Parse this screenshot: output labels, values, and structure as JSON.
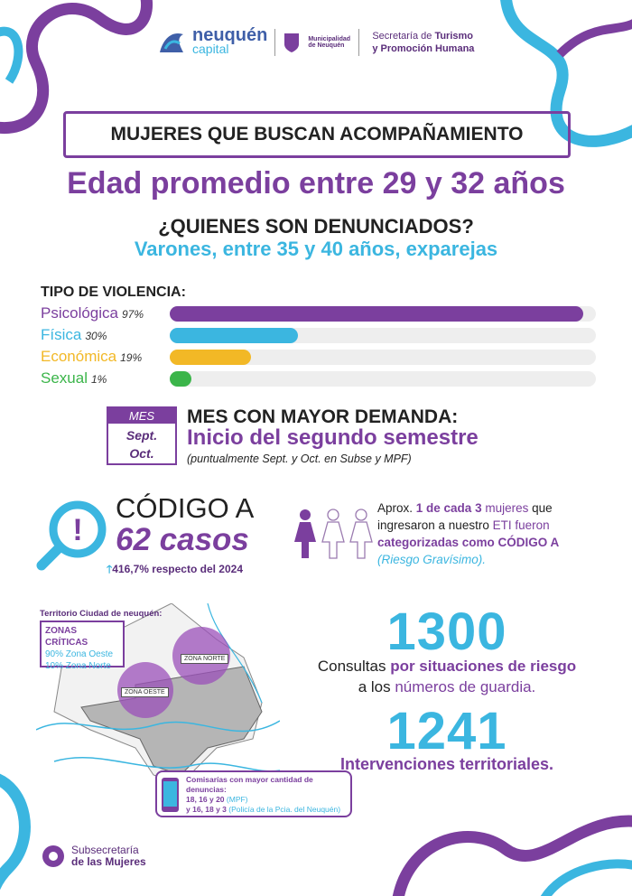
{
  "header": {
    "logo_main": "neuquén",
    "logo_sub": "capital",
    "municipalidad": "Municipalidad de Neuquén",
    "secretaria_line1_a": "Secretaría de ",
    "secretaria_line1_b": "Turismo",
    "secretaria_line2": "y Promoción Humana"
  },
  "title": "MUJERES QUE BUSCAN ACOMPAÑAMIENTO",
  "age": "Edad promedio entre 29 y 32 años",
  "denounced_q": "¿QUIENES SON DENUNCIADOS?",
  "denounced_a": "Varones, entre 35 y 40 años, exparejas",
  "chart_data": {
    "type": "bar",
    "title": "TIPO DE VIOLENCIA:",
    "categories": [
      "Psicológica",
      "Física",
      "Económica",
      "Sexual"
    ],
    "values": [
      97,
      30,
      19,
      1
    ],
    "value_labels": [
      "97%",
      "30%",
      "19%",
      "1%"
    ],
    "colors": [
      "#7b3f9e",
      "#3bb6e0",
      "#f2b826",
      "#3bb54a"
    ],
    "ylim": [
      0,
      100
    ]
  },
  "month": {
    "cal_header": "MES",
    "cal_line1": "Sept.",
    "cal_line2": "Oct.",
    "heading": "MES CON MAYOR DEMANDA:",
    "main": "Inicio del segundo semestre",
    "note": "(puntualmente Sept. y Oct. en Subse y MPF)"
  },
  "codigo": {
    "label": "CÓDIGO A",
    "cases": "62 casos",
    "increase": "416,7% respecto del 2024",
    "text_a": "Aprox. ",
    "text_b": "1 de cada 3",
    "text_c": " mujeres",
    "text_d": " que ingresaron a nuestro ",
    "text_e": "ETI fueron",
    "text_f": "categorizadas como CÓDIGO A",
    "text_g": "(Riesgo Gravísimo)."
  },
  "map": {
    "title": "Territorio Ciudad de neuquén:",
    "box_title": "ZONAS CRÍTICAS",
    "zone1": "90% Zona Oeste",
    "zone2": "10%  Zona Norte",
    "label_norte": "ZONA NORTE",
    "label_oeste": "ZONA  OESTE",
    "comis_title": "Comisarías con mayor cantidad de denuncias:",
    "comis_1a": "18, 16 y 20 ",
    "comis_1b": "(MPF)",
    "comis_2a": "y 16, 18 y 3 ",
    "comis_2b": "(Policía de la Pcia. del Neuquén)"
  },
  "stats": {
    "n1": "1300",
    "n1_a": "Consultas ",
    "n1_b": "por situaciones de riesgo",
    "n1_c": "a los ",
    "n1_d": "números de guardia.",
    "n2": "1241",
    "n2_text": "Intervenciones territoriales."
  },
  "footer": {
    "line1": "Subsecretaría",
    "line2": "de las Mujeres"
  }
}
